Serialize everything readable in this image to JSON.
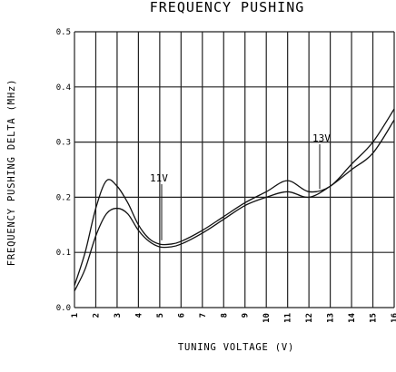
{
  "chart_data": {
    "type": "line",
    "title": "FREQUENCY PUSHING",
    "xlabel": "TUNING VOLTAGE (V)",
    "ylabel": "FREQUENCY PUSHING DELTA (MHz)",
    "xlim": [
      1,
      16
    ],
    "ylim": [
      0,
      0.5
    ],
    "grid": true,
    "x_ticks": [
      "1",
      "2",
      "3",
      "4",
      "5",
      "6",
      "7",
      "8",
      "9",
      "10",
      "11",
      "12",
      "13",
      "14",
      "15",
      "16"
    ],
    "y_ticks": [
      "0.0",
      "0.1",
      "0.2",
      "0.3",
      "0.4",
      "0.5"
    ],
    "series": [
      {
        "name": "11V",
        "x": [
          1,
          1.5,
          2,
          2.5,
          3,
          3.5,
          4,
          4.5,
          5,
          5.5,
          6,
          7,
          8,
          9,
          10,
          11,
          12,
          13,
          14,
          15,
          16
        ],
        "y": [
          0.04,
          0.1,
          0.18,
          0.23,
          0.22,
          0.19,
          0.15,
          0.125,
          0.115,
          0.115,
          0.12,
          0.14,
          0.165,
          0.19,
          0.21,
          0.23,
          0.21,
          0.22,
          0.26,
          0.3,
          0.36
        ]
      },
      {
        "name": "13V",
        "x": [
          1,
          1.5,
          2,
          2.5,
          3,
          3.5,
          4,
          4.5,
          5,
          5.5,
          6,
          7,
          8,
          9,
          10,
          11,
          12,
          13,
          14,
          15,
          16
        ],
        "y": [
          0.03,
          0.07,
          0.13,
          0.17,
          0.18,
          0.17,
          0.14,
          0.12,
          0.11,
          0.11,
          0.115,
          0.135,
          0.16,
          0.185,
          0.2,
          0.21,
          0.2,
          0.22,
          0.25,
          0.28,
          0.34
        ]
      }
    ],
    "annotations": [
      "11V",
      "13V"
    ]
  }
}
